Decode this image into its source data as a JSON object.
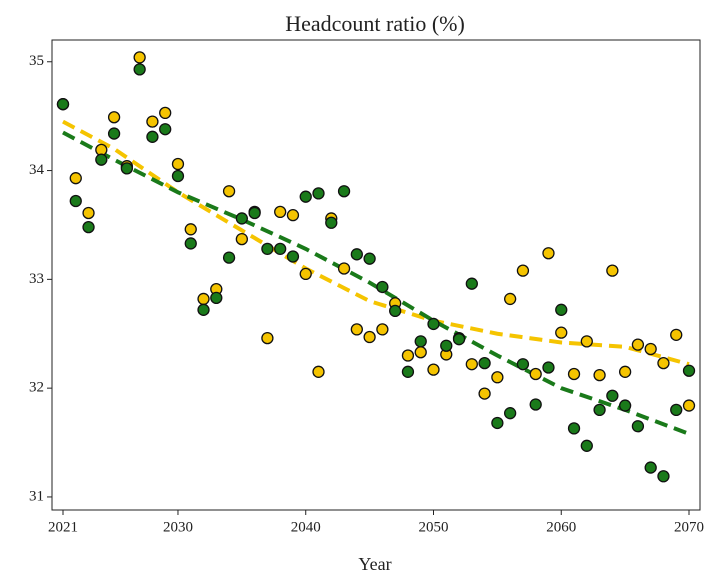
{
  "chart_data": {
    "type": "scatter",
    "title": "Headcount ratio (%)",
    "x_label": "Year",
    "xlim": [
      2020.14,
      2070.86
    ],
    "ylim": [
      30.88,
      35.2
    ],
    "xticks": [
      2021,
      2030,
      2040,
      2050,
      2060,
      2070
    ],
    "yticks": [
      31,
      32,
      33,
      34,
      35
    ],
    "series": [
      {
        "type": "scatter",
        "color": "#f5c400",
        "x": [
          2021,
          2022,
          2023,
          2024,
          2025,
          2026,
          2027,
          2028,
          2029,
          2030,
          2031,
          2032,
          2033,
          2034,
          2035,
          2036,
          2037,
          2038,
          2039,
          2040,
          2041,
          2042,
          2043,
          2044,
          2045,
          2046,
          2047,
          2048,
          2049,
          2050,
          2051,
          2052,
          2053,
          2054,
          2055,
          2056,
          2057,
          2058,
          2059,
          2060,
          2061,
          2062,
          2063,
          2064,
          2065,
          2066,
          2067,
          2068,
          2069,
          2070
        ],
        "values": [
          34.61,
          33.93,
          33.61,
          34.19,
          34.49,
          34.04,
          35.04,
          34.45,
          34.53,
          34.06,
          33.46,
          32.82,
          32.91,
          33.81,
          33.37,
          33.62,
          32.46,
          33.62,
          33.59,
          33.05,
          32.15,
          33.56,
          33.1,
          32.54,
          32.47,
          32.54,
          32.78,
          32.3,
          32.33,
          32.17,
          32.31,
          32.46,
          32.22,
          31.95,
          32.1,
          32.82,
          33.08,
          32.13,
          33.24,
          32.51,
          32.13,
          32.43,
          32.12,
          33.08,
          32.15,
          32.4,
          32.36,
          32.23,
          32.49,
          31.84
        ]
      },
      {
        "type": "scatter",
        "color": "#1a7a1a",
        "x": [
          2021,
          2022,
          2023,
          2024,
          2025,
          2026,
          2027,
          2028,
          2029,
          2030,
          2031,
          2032,
          2033,
          2034,
          2035,
          2036,
          2037,
          2038,
          2039,
          2040,
          2041,
          2042,
          2043,
          2044,
          2045,
          2046,
          2047,
          2048,
          2049,
          2050,
          2051,
          2052,
          2053,
          2054,
          2055,
          2056,
          2057,
          2058,
          2059,
          2060,
          2061,
          2062,
          2063,
          2064,
          2065,
          2066,
          2067,
          2068,
          2069,
          2070
        ],
        "values": [
          34.61,
          33.72,
          33.48,
          34.1,
          34.34,
          34.02,
          34.93,
          34.31,
          34.38,
          33.95,
          33.33,
          32.72,
          32.83,
          33.2,
          33.56,
          33.61,
          33.28,
          33.28,
          33.21,
          33.76,
          33.79,
          33.52,
          33.81,
          33.23,
          33.19,
          32.93,
          32.71,
          32.15,
          32.43,
          32.59,
          32.39,
          32.45,
          32.96,
          32.23,
          31.68,
          31.77,
          32.22,
          31.85,
          32.19,
          32.72,
          31.63,
          31.47,
          31.8,
          31.93,
          31.84,
          31.65,
          31.27,
          31.19,
          31.8,
          32.16
        ]
      },
      {
        "type": "line",
        "color": "#f5c400",
        "dashed": true,
        "x": [
          2021,
          2025,
          2030,
          2035,
          2040,
          2045,
          2050,
          2055,
          2060,
          2065,
          2070
        ],
        "values": [
          34.45,
          34.2,
          33.8,
          33.45,
          33.1,
          32.8,
          32.62,
          32.5,
          32.42,
          32.38,
          32.22
        ]
      },
      {
        "type": "line",
        "color": "#1a7a1a",
        "dashed": true,
        "x": [
          2021,
          2025,
          2030,
          2035,
          2040,
          2045,
          2050,
          2055,
          2060,
          2065,
          2070
        ],
        "values": [
          34.35,
          34.1,
          33.8,
          33.55,
          33.28,
          32.97,
          32.62,
          32.3,
          32.0,
          31.8,
          31.58
        ]
      }
    ]
  }
}
